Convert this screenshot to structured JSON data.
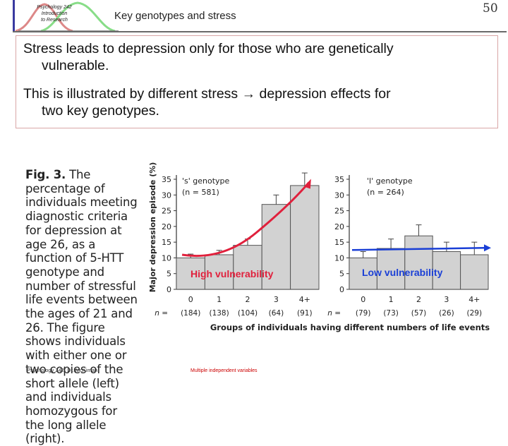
{
  "header": {
    "logo_text": [
      "Psychology 242",
      "Introduction",
      "to Research"
    ],
    "title": "Key genotypes and stress",
    "slide_number": "50"
  },
  "bullets": [
    {
      "line1": "Stress leads to depression only for those who are genetically",
      "line2": "vulnerable."
    },
    {
      "line1": "This is illustrated by different stress → depression effects for",
      "line2": "two key genotypes."
    }
  ],
  "figure_caption": {
    "lead": "Fig. 3.",
    "text": "The percentage of individuals meeting diagnostic criteria for depression at age 26, as a function of 5-HTT genotype and number of stressful life events between the ages of 21 and 26. The figure shows individuals with either one or two copies of the short allele (left) and individuals homozygous for the long allele (right)."
  },
  "chart_data": [
    {
      "type": "bar",
      "title": "'s' genotype",
      "subtitle": "(n = 581)",
      "ylabel": "Major depression episode (%)",
      "xlabel": "Groups of individuals having different numbers of life events",
      "categories": [
        "0",
        "1",
        "2",
        "3",
        "4+"
      ],
      "n_labels": [
        "(184)",
        "(138)",
        "(104)",
        "(64)",
        "(91)"
      ],
      "n_prefix": "n =",
      "values": [
        10,
        11,
        14,
        27,
        33
      ],
      "errors": [
        1.2,
        1.4,
        2,
        3,
        4
      ],
      "ylim": [
        0,
        35
      ],
      "yticks": [
        0,
        5,
        10,
        15,
        20,
        25,
        30,
        35
      ],
      "annotation": "High vulnerability",
      "trend": "curve"
    },
    {
      "type": "bar",
      "title": "'l' genotype",
      "subtitle": "(n = 264)",
      "categories": [
        "0",
        "1",
        "2",
        "3",
        "4+"
      ],
      "n_labels": [
        "(79)",
        "(73)",
        "(57)",
        "(26)",
        "(29)"
      ],
      "n_prefix": "n =",
      "values": [
        10,
        13,
        17,
        12,
        11
      ],
      "errors": [
        2,
        3,
        3.5,
        3,
        4
      ],
      "ylim": [
        0,
        35
      ],
      "yticks": [
        0,
        5,
        10,
        15,
        20,
        25,
        30,
        35
      ],
      "annotation": "Low vulnerability",
      "trend": "flat"
    }
  ],
  "colors": {
    "bar_fill": "#d2d2d2",
    "bar_stroke": "#555555",
    "arrow": "#e0203c",
    "arrow_flat": "#1a3fd6",
    "annotation_text": "#e0203c",
    "annotation_text_low": "#1a3fd6"
  },
  "footer": {
    "left": "Psychology 242, Dr. McKiman",
    "center": "Multiple independent variables"
  }
}
